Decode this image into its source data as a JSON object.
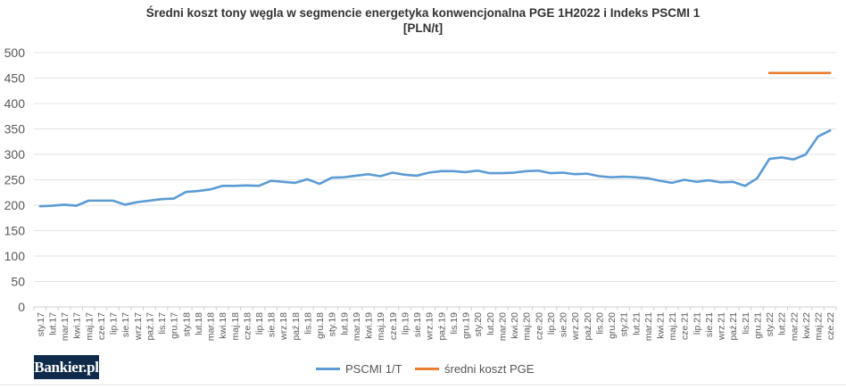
{
  "title": {
    "line1": "Średni koszt tony węgla w segmencie energetyka konwencjonalna PGE 1H2022 i Indeks PSCMI 1",
    "line2": "[PLN/t]"
  },
  "logo_text": "Bankier.pl",
  "chart_data": {
    "type": "line",
    "title": "Średni koszt tony węgla w segmencie energetyka konwencjonalna PGE 1H2022 i Indeks PSCMI 1 [PLN/t]",
    "xlabel": "",
    "ylabel": "",
    "ylim": [
      0,
      500
    ],
    "yticks": [
      0,
      50,
      100,
      150,
      200,
      250,
      300,
      350,
      400,
      450,
      500
    ],
    "grid": "horizontal",
    "legend": "bottom-center",
    "categories": [
      "sty.17",
      "lut.17",
      "mar.17",
      "kwi.17",
      "maj.17",
      "cze.17",
      "lip.17",
      "sie.17",
      "wrz.17",
      "paź.17",
      "lis.17",
      "gru.17",
      "sty.18",
      "lut.18",
      "mar.18",
      "kwi.18",
      "maj.18",
      "cze.18",
      "lip.18",
      "sie.18",
      "wrz.18",
      "paź.18",
      "lis.18",
      "gru.18",
      "sty.19",
      "lut.19",
      "mar.19",
      "kwi.19",
      "maj.19",
      "cze.19",
      "lip.19",
      "sie.19",
      "wrz.19",
      "paź.19",
      "lis.19",
      "gru.19",
      "sty.20",
      "lut.20",
      "mar.20",
      "kwi.20",
      "maj.20",
      "cze.20",
      "lip.20",
      "sie.20",
      "wrz.20",
      "paź.20",
      "lis.20",
      "gru.20",
      "sty.21",
      "lut.21",
      "mar.21",
      "kwi.21",
      "maj.21",
      "cze.21",
      "lip.21",
      "sie.21",
      "wrz.21",
      "paź.21",
      "lis.21",
      "gru.21",
      "sty.22",
      "lut.22",
      "mar.22",
      "kwi.22",
      "maj.22",
      "cze.22"
    ],
    "series": [
      {
        "name": "PSCMI 1/T",
        "color": "#5b9bd5",
        "values": [
          198,
          199,
          201,
          199,
          209,
          209,
          209,
          201,
          206,
          209,
          212,
          213,
          226,
          228,
          231,
          238,
          238,
          239,
          238,
          248,
          246,
          244,
          251,
          242,
          254,
          255,
          258,
          261,
          257,
          264,
          260,
          258,
          264,
          267,
          267,
          265,
          268,
          263,
          263,
          264,
          267,
          268,
          263,
          264,
          261,
          262,
          257,
          255,
          256,
          255,
          253,
          248,
          244,
          250,
          246,
          249,
          245,
          246,
          238,
          253,
          291,
          294,
          290,
          300,
          335,
          347
        ]
      },
      {
        "name": "średni koszt PGE",
        "color": "#ed7d31",
        "values": [
          null,
          null,
          null,
          null,
          null,
          null,
          null,
          null,
          null,
          null,
          null,
          null,
          null,
          null,
          null,
          null,
          null,
          null,
          null,
          null,
          null,
          null,
          null,
          null,
          null,
          null,
          null,
          null,
          null,
          null,
          null,
          null,
          null,
          null,
          null,
          null,
          null,
          null,
          null,
          null,
          null,
          null,
          null,
          null,
          null,
          null,
          null,
          null,
          null,
          null,
          null,
          null,
          null,
          null,
          null,
          null,
          null,
          null,
          null,
          null,
          460,
          460,
          460,
          460,
          460,
          460
        ]
      }
    ]
  }
}
